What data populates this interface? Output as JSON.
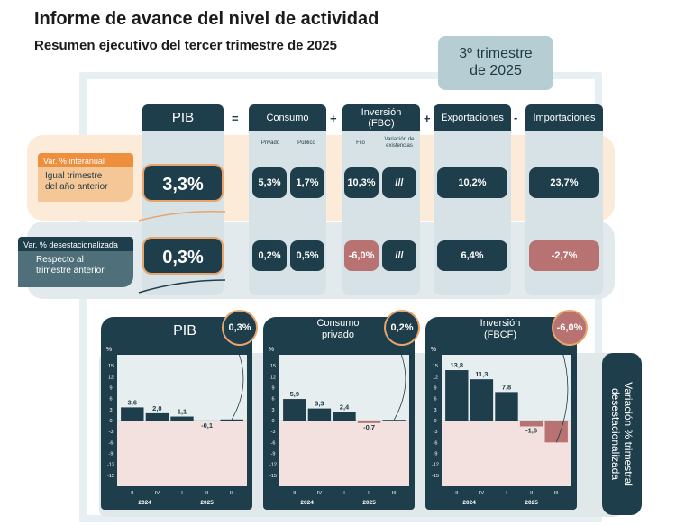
{
  "header": {
    "title": "Informe de avance del nivel de actividad",
    "subtitle": "Resumen ejecutivo del tercer trimestre de 2025",
    "quarter_line1": "3º trimestre",
    "quarter_line2": "de 2025"
  },
  "equation": {
    "pib": "PIB",
    "eq": "=",
    "plus": "+",
    "minus": "-",
    "consumo": "Consumo",
    "privado": "Privado",
    "publico": "Público",
    "inversion_1": "Inversión",
    "inversion_2": "(FBC)",
    "fijo": "Fijo",
    "variacion_1": "Variación de",
    "variacion_2": "existencias",
    "exportaciones": "Exportaciones",
    "importaciones": "Importaciones"
  },
  "rows": {
    "interanual": {
      "tag": "Var. % interanual",
      "desc_1": "Igual trimestre",
      "desc_2": "del año anterior",
      "pib": "3,3%",
      "privado": "5,3%",
      "publico": "1,7%",
      "fijo": "10,3%",
      "existencias": "///",
      "exportaciones": "10,2%",
      "importaciones": "23,7%"
    },
    "desestacionalizada": {
      "tag": "Var. % desestacionalizada",
      "desc_1": "Respecto al",
      "desc_2": "trimestre anterior",
      "pib": "0,3%",
      "privado": "0,2%",
      "publico": "0,5%",
      "fijo": "-6,0%",
      "existencias": "///",
      "exportaciones": "6,4%",
      "importaciones": "-2,7%"
    }
  },
  "side_label_1": "Variación % trimestral",
  "side_label_2": "desestacionalizada",
  "chart_data": [
    {
      "type": "bar",
      "title": "PIB",
      "badge": "0,3%",
      "ylabel": "%",
      "ylim": [
        -18,
        18
      ],
      "yticks": [
        15,
        12,
        9,
        6,
        3,
        0,
        -3,
        -6,
        -9,
        -12,
        -15
      ],
      "categories": [
        "II",
        "IV",
        "I",
        "II",
        "III"
      ],
      "year_labels": [
        "2024",
        "2025"
      ],
      "values": [
        3.6,
        2.0,
        1.1,
        -0.1,
        0.3
      ],
      "labels": [
        "3,6",
        "2,0",
        "1,1",
        "-0,1",
        ""
      ]
    },
    {
      "type": "bar",
      "title": "Consumo privado",
      "title_1": "Consumo",
      "title_2": "privado",
      "badge": "0,2%",
      "ylabel": "%",
      "ylim": [
        -18,
        18
      ],
      "yticks": [
        15,
        12,
        9,
        6,
        3,
        0,
        -3,
        -6,
        -9,
        -12,
        -15
      ],
      "categories": [
        "II",
        "IV",
        "I",
        "II",
        "III"
      ],
      "year_labels": [
        "2024",
        "2025"
      ],
      "values": [
        5.9,
        3.3,
        2.4,
        -0.7,
        0.2
      ],
      "labels": [
        "5,9",
        "3,3",
        "2,4",
        "-0,7",
        ""
      ]
    },
    {
      "type": "bar",
      "title": "Inversión (FBCF)",
      "title_1": "Inversión",
      "title_2": "(FBCF)",
      "badge": "-6,0%",
      "ylabel": "%",
      "ylim": [
        -18,
        18
      ],
      "yticks": [
        15,
        12,
        9,
        6,
        3,
        0,
        -3,
        -6,
        -9,
        -12,
        -15
      ],
      "categories": [
        "II",
        "IV",
        "I",
        "II",
        "III"
      ],
      "year_labels": [
        "2024",
        "2025"
      ],
      "values": [
        13.8,
        11.3,
        7.8,
        -1.6,
        -6.0
      ],
      "labels": [
        "13,8",
        "11,3",
        "7,8",
        "-1,6",
        ""
      ]
    }
  ],
  "colors": {
    "navy": "#1f3e4b",
    "orange": "#ee8f3e",
    "negative": "#b97272",
    "light_teal": "#d6e2e6"
  }
}
